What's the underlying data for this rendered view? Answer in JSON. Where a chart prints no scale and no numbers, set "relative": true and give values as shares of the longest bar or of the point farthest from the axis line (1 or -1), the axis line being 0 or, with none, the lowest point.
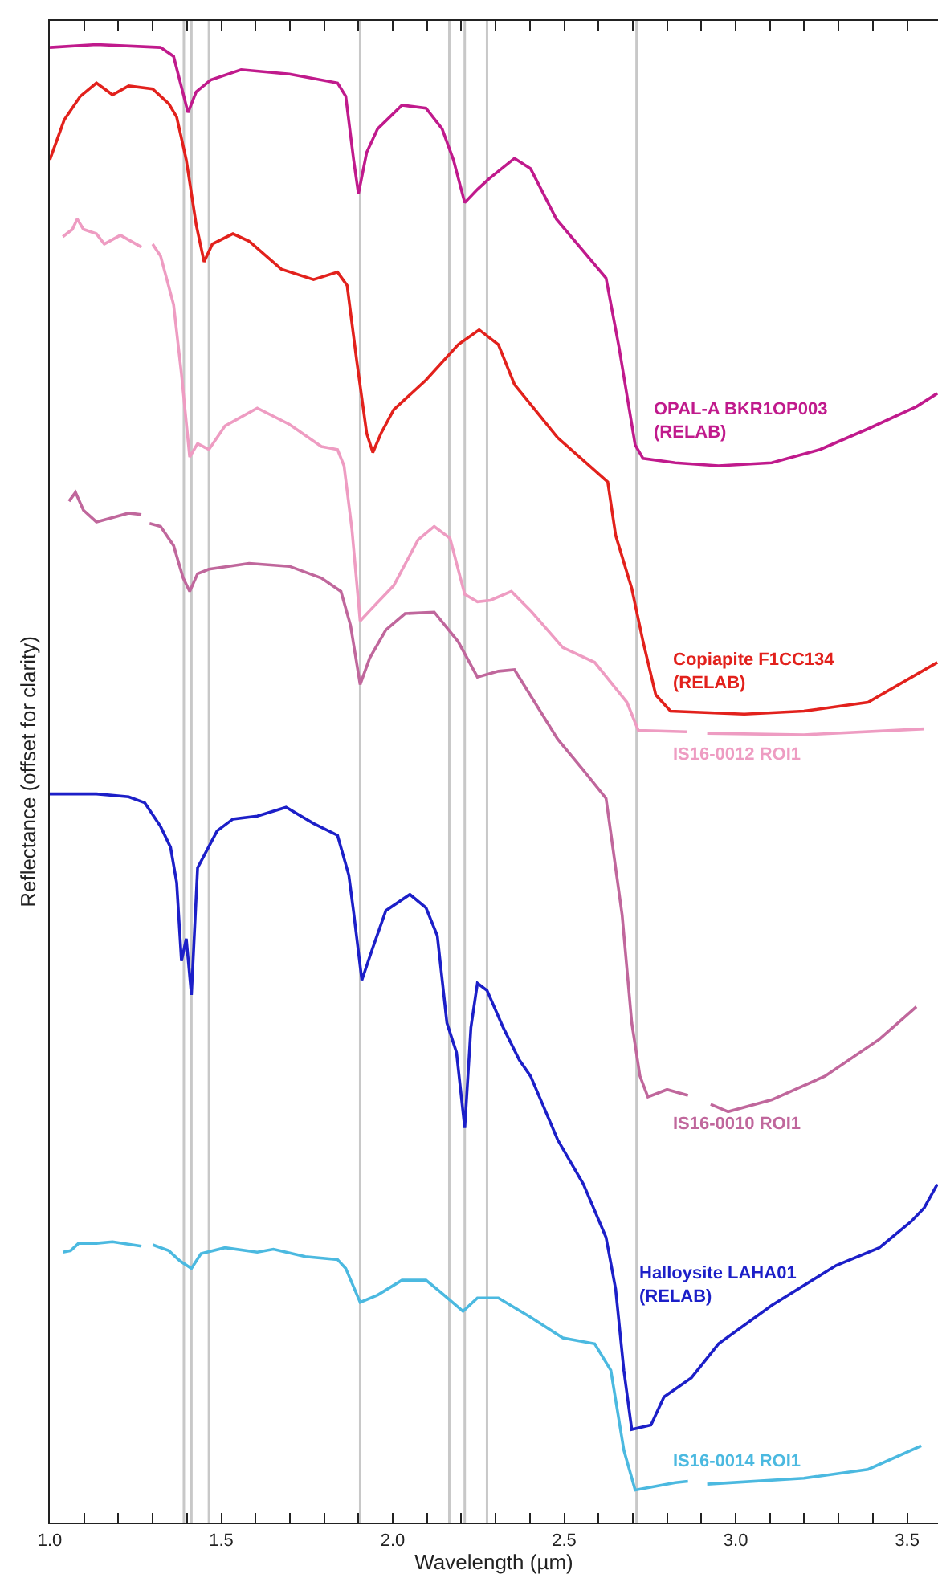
{
  "chart_data": {
    "type": "line",
    "relative": true,
    "xlabel": "Wavelength (µm)",
    "ylabel": "Reflectance (offset for clarity)",
    "xlim": [
      1.0,
      3.59
    ],
    "xticks": [
      {
        "value": 1.0,
        "label": "1.0"
      },
      {
        "value": 1.1,
        "label": null
      },
      {
        "value": 1.2,
        "label": null
      },
      {
        "value": 1.3,
        "label": null
      },
      {
        "value": 1.4,
        "label": null
      },
      {
        "value": 1.5,
        "label": "1.5"
      },
      {
        "value": 1.6,
        "label": null
      },
      {
        "value": 1.7,
        "label": null
      },
      {
        "value": 1.8,
        "label": null
      },
      {
        "value": 1.9,
        "label": null
      },
      {
        "value": 2.0,
        "label": "2.0"
      },
      {
        "value": 2.1,
        "label": null
      },
      {
        "value": 2.2,
        "label": null
      },
      {
        "value": 2.3,
        "label": null
      },
      {
        "value": 2.4,
        "label": null
      },
      {
        "value": 2.5,
        "label": "2.5"
      },
      {
        "value": 2.6,
        "label": null
      },
      {
        "value": 2.7,
        "label": null
      },
      {
        "value": 2.8,
        "label": null
      },
      {
        "value": 2.9,
        "label": null
      },
      {
        "value": 3.0,
        "label": "3.0"
      },
      {
        "value": 3.1,
        "label": null
      },
      {
        "value": 3.2,
        "label": null
      },
      {
        "value": 3.3,
        "label": null
      },
      {
        "value": 3.4,
        "label": null
      },
      {
        "value": 3.5,
        "label": "3.5"
      }
    ],
    "grid": false,
    "legend": false,
    "marker": "none",
    "line_style": "solid",
    "ref_lines": [
      {
        "axis": "x",
        "value": 1.391,
        "color": "#c8c8c8"
      },
      {
        "axis": "x",
        "value": 1.413,
        "color": "#c8c8c8"
      },
      {
        "axis": "x",
        "value": 1.464,
        "color": "#c8c8c8"
      },
      {
        "axis": "x",
        "value": 1.905,
        "color": "#c8c8c8"
      },
      {
        "axis": "x",
        "value": 2.165,
        "color": "#c8c8c8"
      },
      {
        "axis": "x",
        "value": 2.21,
        "color": "#c8c8c8"
      },
      {
        "axis": "x",
        "value": 2.275,
        "color": "#c8c8c8"
      },
      {
        "axis": "x",
        "value": 2.711,
        "color": "#c8c8c8"
      }
    ],
    "series": [
      {
        "name": "OPAL-A BKR1OP003\n(RELAB)",
        "color": "#c01a8c",
        "x": [
          1.0,
          1.136,
          1.323,
          1.361,
          1.403,
          1.427,
          1.469,
          1.558,
          1.699,
          1.839,
          1.863,
          1.886,
          1.9,
          1.924,
          1.956,
          2.027,
          2.097,
          2.144,
          2.177,
          2.21,
          2.247,
          2.28,
          2.355,
          2.402,
          2.477,
          2.622,
          2.66,
          2.707,
          2.73,
          2.824,
          2.95,
          3.105,
          3.246,
          3.386,
          3.527,
          3.588
        ],
        "values": [
          0.998,
          1.0,
          0.998,
          0.992,
          0.954,
          0.968,
          0.976,
          0.983,
          0.98,
          0.974,
          0.965,
          0.922,
          0.899,
          0.927,
          0.943,
          0.959,
          0.957,
          0.943,
          0.922,
          0.893,
          0.902,
          0.909,
          0.923,
          0.916,
          0.882,
          0.842,
          0.795,
          0.729,
          0.72,
          0.717,
          0.715,
          0.717,
          0.726,
          0.74,
          0.755,
          0.764
        ]
      },
      {
        "name": "Copiapite F1CC134\n(RELAB)",
        "color": "#e2211c",
        "x": [
          1.0,
          1.042,
          1.089,
          1.136,
          1.183,
          1.23,
          1.3,
          1.347,
          1.37,
          1.398,
          1.427,
          1.45,
          1.474,
          1.534,
          1.581,
          1.675,
          1.769,
          1.839,
          1.867,
          1.895,
          1.924,
          1.942,
          1.966,
          2.003,
          2.097,
          2.191,
          2.252,
          2.308,
          2.355,
          2.481,
          2.627,
          2.65,
          2.697,
          2.73,
          2.767,
          2.81,
          3.025,
          3.199,
          3.386,
          3.588
        ],
        "values": [
          0.922,
          0.949,
          0.965,
          0.974,
          0.966,
          0.972,
          0.97,
          0.96,
          0.951,
          0.922,
          0.878,
          0.853,
          0.865,
          0.872,
          0.867,
          0.848,
          0.841,
          0.846,
          0.837,
          0.786,
          0.737,
          0.724,
          0.737,
          0.753,
          0.773,
          0.797,
          0.807,
          0.797,
          0.77,
          0.734,
          0.704,
          0.668,
          0.632,
          0.596,
          0.56,
          0.549,
          0.547,
          0.549,
          0.555,
          0.582
        ]
      },
      {
        "name": "IS16-0012 ROI1",
        "color": "#ee9cc2",
        "x": [
          1.038,
          1.066,
          1.08,
          1.098,
          1.136,
          1.159,
          1.206,
          1.267,
          1.285,
          1.3,
          1.323,
          1.361,
          1.384,
          1.408,
          1.431,
          1.464,
          1.511,
          1.605,
          1.699,
          1.792,
          1.839,
          1.858,
          1.881,
          1.905,
          1.933,
          2.003,
          2.074,
          2.121,
          2.167,
          2.21,
          2.247,
          2.285,
          2.346,
          2.402,
          2.496,
          2.589,
          2.683,
          2.716,
          2.857,
          2.89,
          2.917,
          3.199,
          3.55
        ],
        "values": [
          0.87,
          0.875,
          0.882,
          0.875,
          0.872,
          0.865,
          0.871,
          0.863,
          null,
          0.865,
          0.857,
          0.824,
          0.777,
          0.721,
          0.73,
          0.726,
          0.742,
          0.754,
          0.743,
          0.728,
          0.726,
          0.715,
          0.672,
          0.61,
          0.617,
          0.634,
          0.665,
          0.674,
          0.666,
          0.628,
          0.623,
          0.624,
          0.63,
          0.617,
          0.592,
          0.582,
          0.555,
          0.536,
          0.535,
          null,
          0.534,
          0.533,
          0.537
        ]
      },
      {
        "name": "IS16-0010 ROI1",
        "color": "#c0679c",
        "x": [
          1.056,
          1.075,
          1.098,
          1.136,
          1.183,
          1.23,
          1.267,
          1.28,
          1.291,
          1.323,
          1.361,
          1.389,
          1.408,
          1.431,
          1.464,
          1.581,
          1.699,
          1.792,
          1.849,
          1.877,
          1.905,
          1.933,
          1.98,
          2.036,
          2.121,
          2.191,
          2.247,
          2.308,
          2.355,
          2.481,
          2.556,
          2.622,
          2.669,
          2.697,
          2.721,
          2.744,
          2.8,
          2.861,
          2.89,
          2.927,
          2.978,
          3.105,
          3.26,
          3.419,
          3.527
        ],
        "values": [
          0.691,
          0.697,
          0.685,
          0.677,
          0.68,
          0.683,
          0.682,
          null,
          0.676,
          0.674,
          0.661,
          0.639,
          0.63,
          0.642,
          0.645,
          0.649,
          0.647,
          0.639,
          0.63,
          0.607,
          0.567,
          0.585,
          0.604,
          0.615,
          0.616,
          0.596,
          0.572,
          0.576,
          0.577,
          0.53,
          0.509,
          0.49,
          0.411,
          0.338,
          0.302,
          0.288,
          0.293,
          0.289,
          null,
          0.283,
          0.278,
          0.286,
          0.302,
          0.327,
          0.349
        ]
      },
      {
        "name": "Halloysite LAHA01\n(RELAB)",
        "color": "#1c1fc8",
        "x": [
          1.0,
          1.136,
          1.23,
          1.277,
          1.323,
          1.352,
          1.37,
          1.384,
          1.398,
          1.413,
          1.431,
          1.488,
          1.534,
          1.605,
          1.689,
          1.769,
          1.839,
          1.872,
          1.886,
          1.91,
          1.942,
          1.98,
          2.05,
          2.097,
          2.13,
          2.158,
          2.186,
          2.21,
          2.228,
          2.247,
          2.275,
          2.322,
          2.369,
          2.402,
          2.481,
          2.556,
          2.622,
          2.65,
          2.674,
          2.697,
          2.753,
          2.791,
          2.871,
          2.95,
          3.105,
          3.293,
          3.419,
          3.513,
          3.55,
          3.588
        ],
        "values": [
          0.493,
          0.493,
          0.491,
          0.487,
          0.471,
          0.457,
          0.433,
          0.38,
          0.395,
          0.357,
          0.443,
          0.468,
          0.476,
          0.478,
          0.484,
          0.473,
          0.465,
          0.438,
          0.413,
          0.367,
          0.389,
          0.414,
          0.425,
          0.416,
          0.397,
          0.338,
          0.318,
          0.267,
          0.335,
          0.365,
          0.36,
          0.335,
          0.313,
          0.302,
          0.259,
          0.229,
          0.193,
          0.158,
          0.103,
          0.063,
          0.066,
          0.085,
          0.098,
          0.121,
          0.147,
          0.174,
          0.186,
          0.204,
          0.213,
          0.229
        ]
      },
      {
        "name": "IS16-0014 ROI1",
        "color": "#4bb9e0",
        "x": [
          1.038,
          1.061,
          1.084,
          1.136,
          1.183,
          1.267,
          1.28,
          1.3,
          1.347,
          1.38,
          1.413,
          1.441,
          1.511,
          1.605,
          1.652,
          1.745,
          1.839,
          1.863,
          1.905,
          1.956,
          2.027,
          2.097,
          2.144,
          2.205,
          2.247,
          2.308,
          2.402,
          2.496,
          2.589,
          2.636,
          2.674,
          2.707,
          2.824,
          2.861,
          2.89,
          2.917,
          3.199,
          3.386,
          3.541
        ],
        "values": [
          0.183,
          0.184,
          0.189,
          0.189,
          0.19,
          0.187,
          null,
          0.188,
          0.184,
          0.177,
          0.172,
          0.182,
          0.186,
          0.183,
          0.185,
          0.18,
          0.178,
          0.172,
          0.149,
          0.154,
          0.164,
          0.164,
          0.155,
          0.143,
          0.152,
          0.152,
          0.139,
          0.125,
          0.121,
          0.103,
          0.049,
          0.022,
          0.027,
          0.028,
          null,
          0.026,
          0.03,
          0.036,
          0.052
        ]
      }
    ]
  }
}
